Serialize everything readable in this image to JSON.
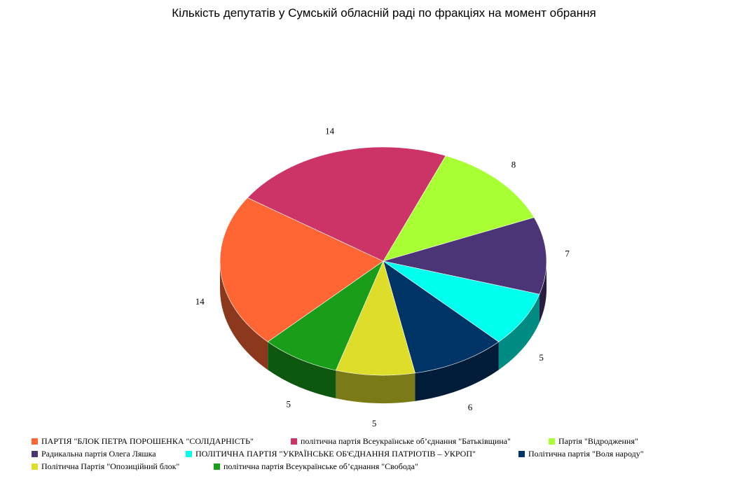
{
  "chart_data": {
    "type": "pie",
    "title": "Кількість депутатів  у Сумській обласній  раді по фракціях на момент обрання",
    "categories": [
      "ПАРТІЯ \"БЛОК ПЕТРА ПОРОШЕНКА \"СОЛІДАРНІСТЬ\"",
      "політична партія Всеукраїнське об’єднання \"Батьківщина\"",
      "Партія \"Відродження\"",
      "Радикальна партія Олега Ляшка",
      "ПОЛІТИЧНА ПАРТІЯ \"УКРАЇНСЬКЕ ОБ'ЄДНАННЯ ПАТРІОТІВ – УКРОП\"",
      "Політична партія \"Воля народу\"",
      "Політична Партія \"Опозиційний блок\"",
      "політична партія Всеукраїнське об’єднання \"Свобода\""
    ],
    "values": [
      14,
      14,
      8,
      7,
      5,
      6,
      5,
      5
    ],
    "colors": [
      "#ff6633",
      "#cc3366",
      "#a8ff33",
      "#4b3577",
      "#00ffee",
      "#003366",
      "#dddd2a",
      "#1a9e1a"
    ],
    "legend": "bottom"
  }
}
